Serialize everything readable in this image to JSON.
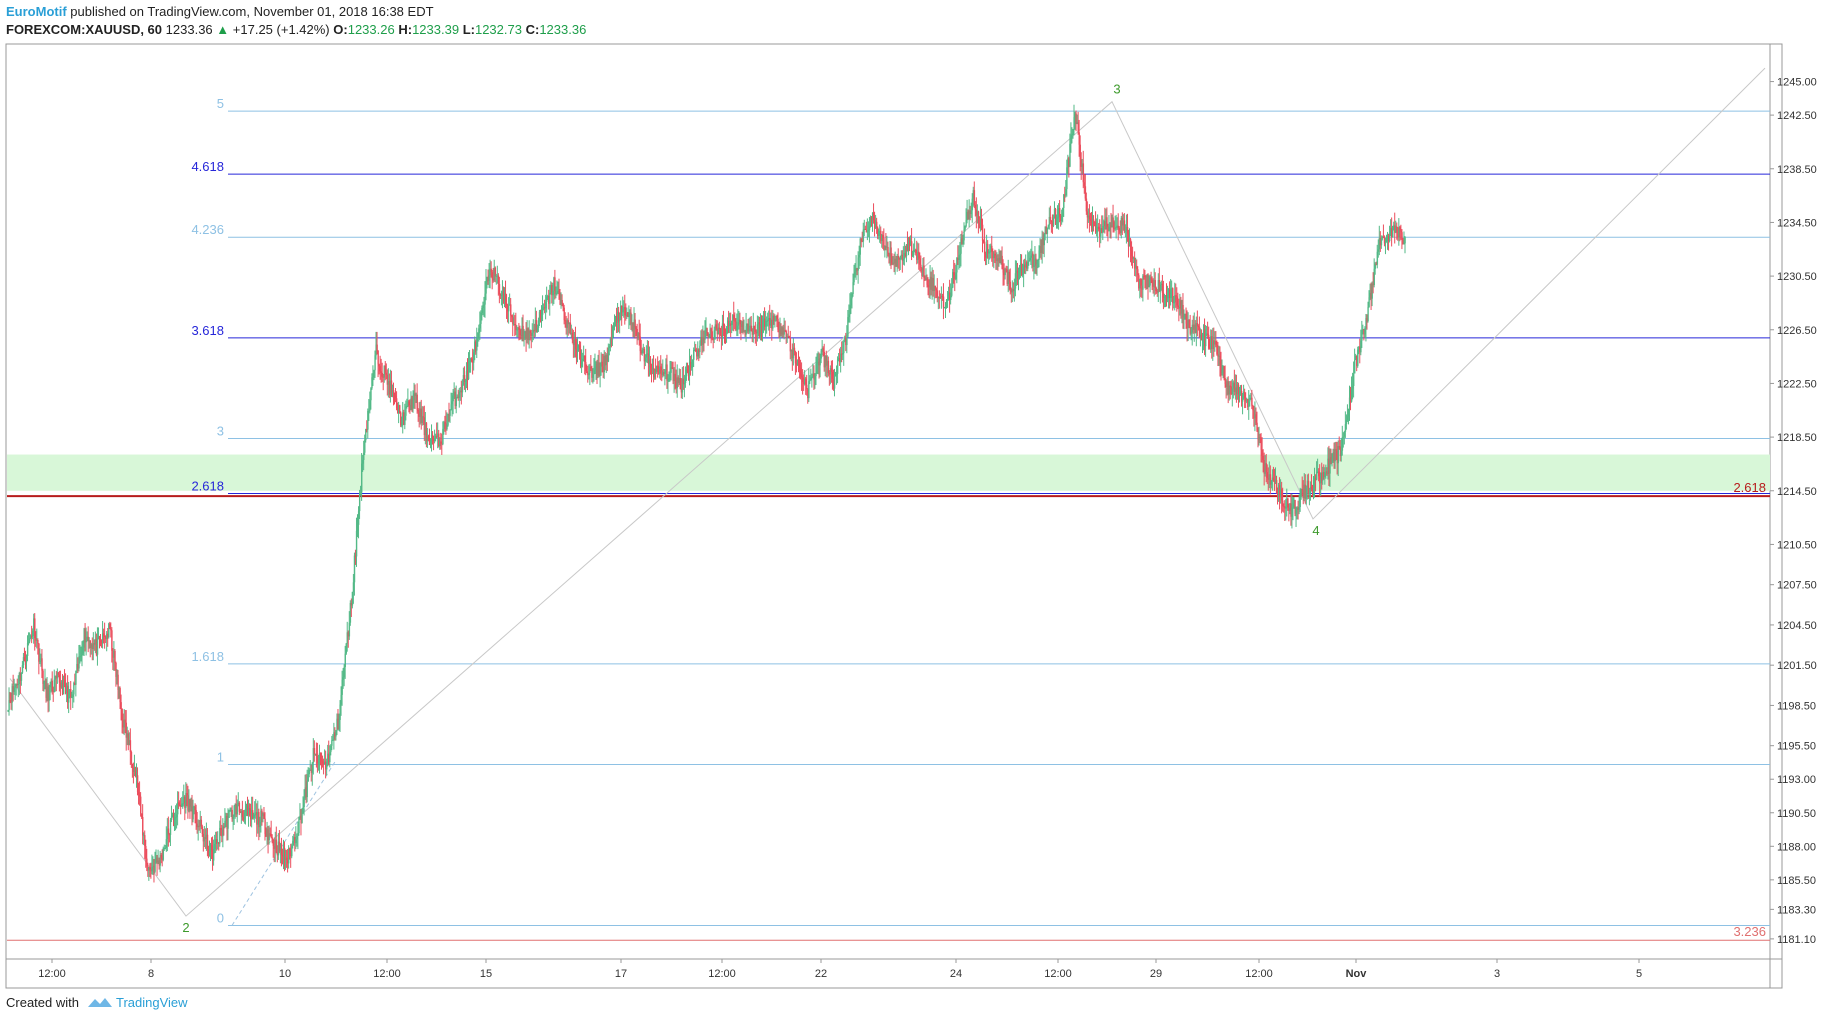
{
  "header": {
    "author": "EuroMotif",
    "published": " published on TradingView.com, November 01, 2018 16:38 EDT",
    "symbol": "FOREXCOM:XAUUSD, 60",
    "last": "1233.36",
    "change_arrow": "▲",
    "change": "+17.25 (+1.42%)",
    "o_label": "O:",
    "o_value": "1233.26",
    "h_label": "H:",
    "h_value": "1233.39",
    "l_label": "L:",
    "l_value": "1232.73",
    "c_label": "C:",
    "c_value": "1233.36"
  },
  "footer": {
    "created_with": "Created with",
    "brand": "TradingView"
  },
  "colors": {
    "up": "#53b987",
    "down": "#eb4d5c",
    "fib_light": "#8ec1e4",
    "fib_dark": "#2626d9",
    "zone": "#d8f7d8",
    "red_line": "#b71c1c",
    "wave_label": "#3d9a2c",
    "text": "#333333"
  },
  "chart_data": {
    "type": "candlestick",
    "symbol": "FOREXCOM:XAUUSD",
    "interval": "60",
    "ylim": [
      1179.6,
      1247.8
    ],
    "y_ticks": [
      "1245.00",
      "1242.50",
      "1238.50",
      "1234.50",
      "1230.50",
      "1226.50",
      "1222.50",
      "1218.50",
      "1214.50",
      "1210.50",
      "1207.50",
      "1204.50",
      "1201.50",
      "1198.50",
      "1195.50",
      "1193.00",
      "1190.50",
      "1188.00",
      "1185.50",
      "1183.30",
      "1181.10"
    ],
    "x_ticks": [
      "12:00",
      "8",
      "10",
      "12:00",
      "15",
      "17",
      "12:00",
      "22",
      "24",
      "12:00",
      "29",
      "12:00",
      "Nov",
      "3",
      "5"
    ],
    "fib_levels": [
      {
        "label": "5",
        "price": 1242.8,
        "style": "light"
      },
      {
        "label": "4.618",
        "price": 1238.1,
        "style": "dark"
      },
      {
        "label": "4.236",
        "price": 1233.4,
        "style": "light"
      },
      {
        "label": "3.618",
        "price": 1225.9,
        "style": "dark"
      },
      {
        "label": "3",
        "price": 1218.4,
        "style": "light"
      },
      {
        "label": "2.618",
        "price": 1214.3,
        "style": "dark"
      },
      {
        "label": "1.618",
        "price": 1201.6,
        "style": "light"
      },
      {
        "label": "1",
        "price": 1194.1,
        "style": "light"
      },
      {
        "label": "0",
        "price": 1182.1,
        "style": "light"
      }
    ],
    "horizontal_lines": [
      {
        "label": "2.618",
        "price": 1214.1
      },
      {
        "label": "3.236",
        "price": 1181.0
      }
    ],
    "zone": {
      "from": 1214.5,
      "to": 1217.2
    },
    "waves": [
      {
        "label": "2",
        "price": 1182.8
      },
      {
        "label": "3",
        "price": 1243.5
      },
      {
        "label": "4",
        "price": 1212.4
      }
    ],
    "path": [
      1198.8,
      1200.8,
      1204.6,
      1199.3,
      1200.4,
      1198.9,
      1203.8,
      1202.8,
      1204.1,
      1197.7,
      1193.5,
      1186.2,
      1187.0,
      1190.3,
      1191.6,
      1189.7,
      1187.3,
      1189.6,
      1190.9,
      1190.2,
      1190.0,
      1188.2,
      1187.0,
      1190.0,
      1194.7,
      1194.0,
      1197.2,
      1206.3,
      1217.9,
      1224.8,
      1222.3,
      1219.7,
      1221.5,
      1218.5,
      1218.1,
      1221.0,
      1222.9,
      1225.8,
      1231.3,
      1228.9,
      1226.7,
      1226.1,
      1227.5,
      1229.9,
      1227.0,
      1224.5,
      1223.1,
      1224.1,
      1227.7,
      1227.5,
      1224.7,
      1223.3,
      1223.3,
      1222.4,
      1224.6,
      1226.3,
      1226.3,
      1227.2,
      1226.7,
      1226.5,
      1227.3,
      1226.7,
      1224.3,
      1222.0,
      1224.7,
      1222.7,
      1225.9,
      1232.5,
      1235.0,
      1232.5,
      1231.5,
      1232.9,
      1231.0,
      1229.4,
      1228.4,
      1233.0,
      1236.5,
      1232.4,
      1232.0,
      1229.7,
      1231.4,
      1231.6,
      1234.8,
      1235.2,
      1242.8,
      1235.0,
      1234.0,
      1234.7,
      1234.0,
      1230.0,
      1230.0,
      1229.4,
      1228.7,
      1226.9,
      1226.0,
      1225.3,
      1222.3,
      1221.8,
      1220.7,
      1216.0,
      1214.6,
      1212.8,
      1214.3,
      1215.4,
      1216.4,
      1217.6,
      1223.6,
      1227.5,
      1233.0,
      1233.9,
      1233.4
    ]
  }
}
